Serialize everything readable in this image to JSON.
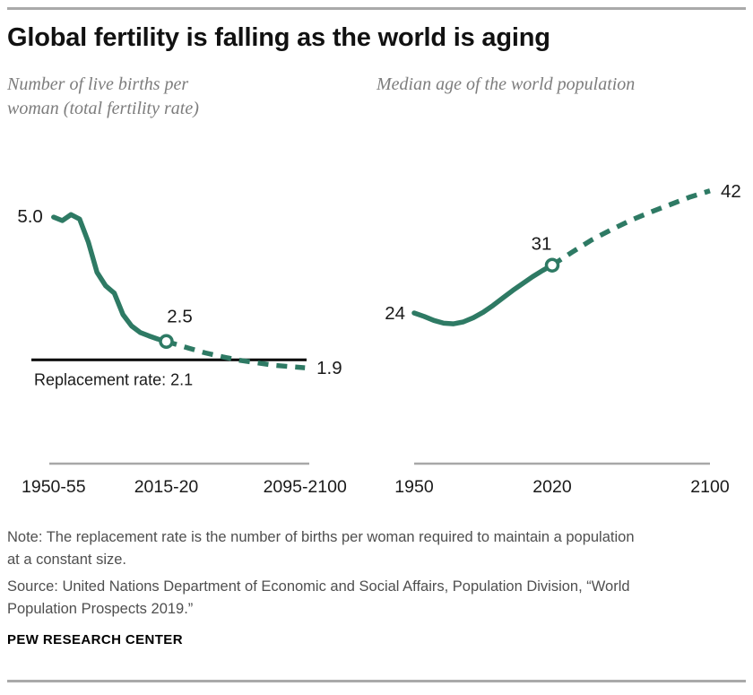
{
  "header": {
    "title": "Global fertility is falling as the world is aging"
  },
  "style": {
    "line_green": "#2e7a64",
    "reference_line_color": "#000000",
    "axis_gray": "#a8a8a8",
    "rule_gray": "#aaaaaa",
    "text_dark": "#1a1a1a",
    "subtitle_gray": "#7d7d7d",
    "note_gray": "#4f4f4f"
  },
  "chart_data": [
    {
      "type": "line",
      "title": "Number of live births per woman (total fertility rate)",
      "xlabel": "",
      "ylabel": "",
      "xlim": [
        1950,
        2100
      ],
      "ylim": [
        1.6,
        5.35
      ],
      "grid": false,
      "legend": "none",
      "x_ticks": [
        "1950-55",
        "2015-20",
        "2095-2100"
      ],
      "x_tick_positions": [
        1952.5,
        2017.5,
        2097.5
      ],
      "series": [
        {
          "name": "Total fertility rate (estimates)",
          "style": "solid",
          "x": [
            1952.5,
            1957.5,
            1962.5,
            1967.5,
            1972.5,
            1977.5,
            1982.5,
            1987.5,
            1992.5,
            1997.5,
            2002.5,
            2007.5,
            2012.5,
            2017.5
          ],
          "y": [
            4.97,
            4.9,
            5.02,
            4.93,
            4.47,
            3.86,
            3.59,
            3.44,
            3.01,
            2.78,
            2.65,
            2.58,
            2.52,
            2.47
          ]
        },
        {
          "name": "Total fertility rate (projected)",
          "style": "dashed",
          "x": [
            2017.5,
            2030,
            2040,
            2050,
            2060,
            2070,
            2080,
            2090,
            2097.5
          ],
          "y": [
            2.47,
            2.34,
            2.24,
            2.16,
            2.09,
            2.04,
            1.99,
            1.96,
            1.94
          ]
        }
      ],
      "marker": {
        "x": 2017.5,
        "y": 2.47,
        "label": "2.5"
      },
      "start_label": {
        "x": 1952.5,
        "y": 4.97,
        "text": "5.0"
      },
      "end_label": {
        "x": 2097.5,
        "y": 1.94,
        "text": "1.9"
      },
      "reference_line": {
        "value": 2.1,
        "label": "Replacement rate: 2.1"
      }
    },
    {
      "type": "line",
      "title": "Median age of the world population",
      "xlabel": "",
      "ylabel": "",
      "xlim": [
        1950,
        2100
      ],
      "ylim": [
        19,
        44.5
      ],
      "grid": false,
      "legend": "none",
      "x_ticks": [
        "1950",
        "2020",
        "2100"
      ],
      "x_tick_positions": [
        1950,
        2020,
        2100
      ],
      "series": [
        {
          "name": "Median age (estimates)",
          "style": "solid",
          "x": [
            1950,
            1955,
            1960,
            1965,
            1970,
            1975,
            1980,
            1985,
            1990,
            1995,
            2000,
            2005,
            2010,
            2015,
            2020
          ],
          "y": [
            24.0,
            23.5,
            22.9,
            22.5,
            22.4,
            22.7,
            23.3,
            24.1,
            25.1,
            26.2,
            27.3,
            28.3,
            29.3,
            30.2,
            31.0
          ]
        },
        {
          "name": "Median age (projected)",
          "style": "dashed",
          "x": [
            2020,
            2030,
            2040,
            2050,
            2060,
            2070,
            2080,
            2090,
            2100
          ],
          "y": [
            31.0,
            32.9,
            34.7,
            36.2,
            37.6,
            38.8,
            39.9,
            41.0,
            41.9
          ]
        }
      ],
      "marker": {
        "x": 2020,
        "y": 31.0,
        "label": "31"
      },
      "start_label": {
        "x": 1950,
        "y": 24.0,
        "text": "24"
      },
      "end_label": {
        "x": 2100,
        "y": 41.9,
        "text": "42"
      },
      "reference_line": null
    }
  ],
  "footer": {
    "note": "Note: The replacement rate is the number of births per woman required to maintain a population at a constant size.",
    "source": "Source: United Nations Department of Economic and Social Affairs, Population Division, “World Population Prospects 2019.”",
    "brand": "PEW RESEARCH CENTER"
  }
}
